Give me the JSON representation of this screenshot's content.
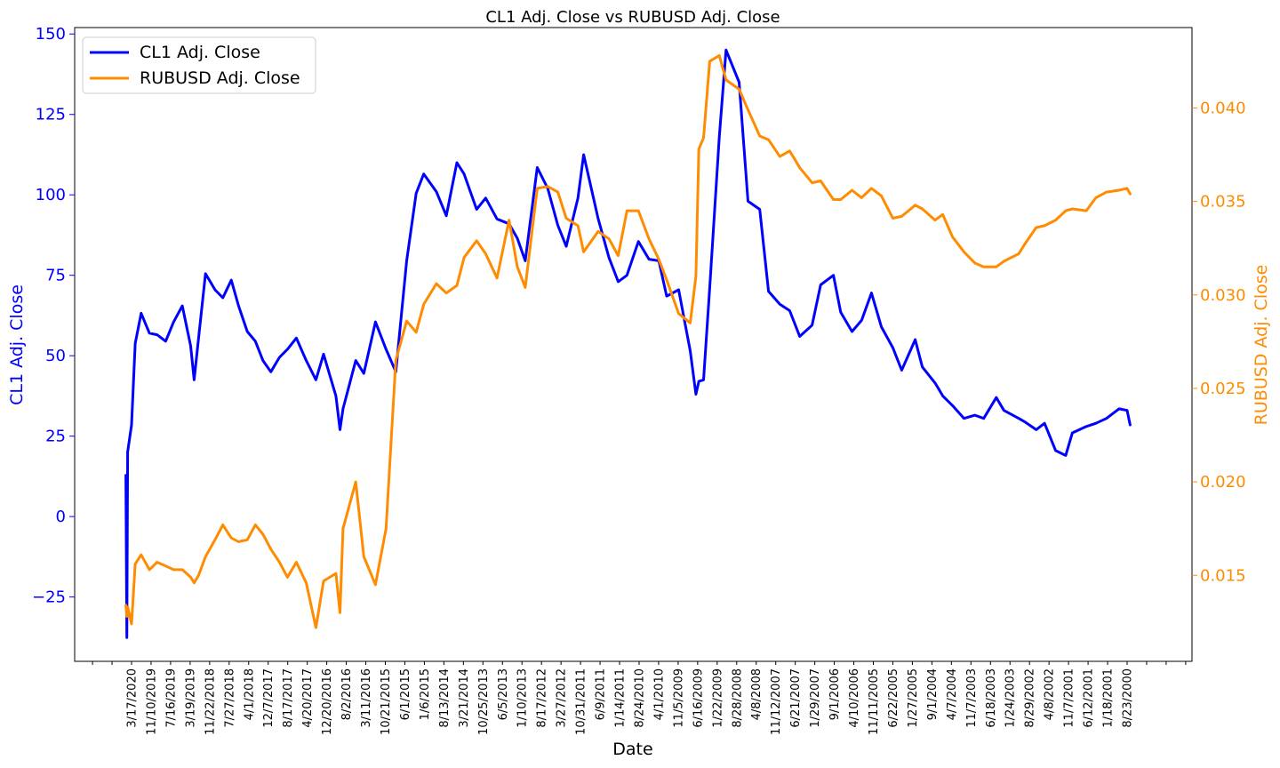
{
  "chart_data": {
    "type": "line",
    "title": "CL1 Adj. Close vs RUBUSD Adj. Close",
    "xlabel": "Date",
    "ylabel_left": "CL1 Adj. Close",
    "ylabel_right": "RUBUSD Adj. Close",
    "x_order": "reverse-chronological (newest on left)",
    "x_tick_labels": [
      "3/17/2020",
      "11/10/2019",
      "7/16/2019",
      "3/19/2019",
      "11/22/2018",
      "7/27/2018",
      "4/1/2018",
      "12/7/2017",
      "8/17/2017",
      "4/20/2017",
      "12/20/2016",
      "8/2/2016",
      "3/11/2016",
      "10/21/2015",
      "6/1/2015",
      "1/6/2015",
      "8/13/2014",
      "3/21/2014",
      "10/25/2013",
      "6/5/2013",
      "1/10/2013",
      "8/17/2012",
      "3/27/2012",
      "10/31/2011",
      "6/9/2011",
      "1/14/2011",
      "8/24/2010",
      "4/1/2010",
      "11/5/2009",
      "6/16/2009",
      "1/22/2009",
      "8/28/2008",
      "4/8/2008",
      "11/12/2007",
      "6/21/2007",
      "1/29/2007",
      "9/1/2006",
      "4/10/2006",
      "11/11/2005",
      "6/22/2005",
      "1/27/2005",
      "9/1/2004",
      "4/7/2004",
      "11/7/2003",
      "6/18/2003",
      "1/24/2003",
      "8/29/2002",
      "4/8/2002",
      "11/7/2001",
      "6/12/2001",
      "1/18/2001",
      "8/23/2000"
    ],
    "ylim_left": [
      -45,
      152
    ],
    "yticks_left": [
      "150",
      "125",
      "100",
      "75",
      "50",
      "25",
      "0",
      "−25"
    ],
    "ylim_right": [
      0.0104,
      0.0443
    ],
    "yticks_right": [
      "0.040",
      "0.035",
      "0.030",
      "0.025",
      "0.020",
      "0.015"
    ],
    "grid": false,
    "legend_position": "top-left",
    "series": [
      {
        "name": "CL1 Adj. Close",
        "axis": "left",
        "color": "#0000ff",
        "x": [
          "4/27/2020",
          "4/20/2020",
          "4/14/2020",
          "3/17/2020",
          "2/20/2020",
          "1/8/2020",
          "11/10/2019",
          "9/16/2019",
          "7/16/2019",
          "5/20/2019",
          "3/19/2019",
          "1/18/2019",
          "12/24/2018",
          "11/22/2018",
          "10/3/2018",
          "7/27/2018",
          "6/1/2018",
          "4/1/2018",
          "2/8/2018",
          "12/7/2017",
          "10/10/2017",
          "8/17/2017",
          "6/21/2017",
          "4/20/2017",
          "2/22/2017",
          "12/20/2016",
          "10/10/2016",
          "8/2/2016",
          "6/8/2016",
          "3/11/2016",
          "2/11/2016",
          "1/20/2016",
          "10/21/2015",
          "8/24/2015",
          "6/1/2015",
          "3/17/2015",
          "1/6/2015",
          "10/20/2014",
          "8/13/2014",
          "6/20/2014",
          "3/21/2014",
          "1/9/2014",
          "10/25/2013",
          "9/3/2013",
          "6/5/2013",
          "4/1/2013",
          "1/10/2013",
          "10/15/2012",
          "8/17/2012",
          "6/21/2012",
          "3/27/2012",
          "1/12/2012",
          "10/31/2011",
          "9/1/2011",
          "6/9/2011",
          "4/29/2011",
          "1/14/2011",
          "10/29/2010",
          "8/24/2010",
          "6/22/2010",
          "4/1/2010",
          "1/15/2010",
          "11/5/2009",
          "9/10/2009",
          "6/16/2009",
          "3/25/2009",
          "2/12/2009",
          "1/22/2009",
          "12/19/2008",
          "11/5/2008",
          "8/28/2008",
          "7/11/2008",
          "4/8/2008",
          "2/4/2008",
          "11/12/2007",
          "9/10/2007",
          "6/21/2007",
          "4/11/2007",
          "1/29/2007",
          "11/1/2006",
          "9/1/2006",
          "6/1/2006",
          "4/10/2006",
          "1/19/2006",
          "11/11/2005",
          "9/1/2005",
          "6/22/2005",
          "4/1/2005",
          "1/27/2005",
          "10/22/2004",
          "9/1/2004",
          "6/1/2004",
          "4/7/2004",
          "1/28/2004",
          "11/7/2003",
          "8/20/2003",
          "6/18/2003",
          "3/20/2003",
          "1/24/2003",
          "10/10/2002",
          "8/29/2002",
          "6/7/2002",
          "4/8/2002",
          "1/18/2002",
          "11/7/2001",
          "9/20/2001",
          "6/12/2001",
          "4/4/2001",
          "1/18/2001",
          "10/20/2000",
          "8/23/2000",
          "8/1/2000"
        ],
        "values": [
          12.8,
          -37.6,
          20.1,
          28.5,
          53.8,
          63.2,
          57.0,
          56.5,
          54.5,
          60.5,
          65.5,
          53.0,
          42.5,
          55.5,
          75.5,
          70.5,
          68.0,
          73.5,
          65.5,
          57.5,
          54.5,
          48.5,
          45.0,
          49.5,
          52.0,
          55.5,
          48.5,
          42.5,
          50.5,
          37.5,
          27.0,
          33.5,
          48.5,
          44.5,
          60.5,
          52.0,
          45.0,
          79.5,
          100.5,
          106.5,
          101.0,
          93.5,
          110.0,
          106.5,
          95.5,
          99.0,
          92.5,
          91.0,
          86.5,
          79.5,
          108.5,
          102.0,
          90.5,
          84.0,
          99.0,
          112.5,
          92.5,
          80.5,
          73.0,
          75.0,
          85.5,
          80.0,
          79.5,
          68.5,
          70.5,
          51.5,
          38.0,
          42.0,
          42.5,
          71.0,
          118.0,
          145.0,
          135.0,
          98.0,
          95.5,
          70.0,
          66.0,
          64.0,
          56.0,
          59.5,
          72.0,
          75.0,
          63.5,
          57.5,
          61.0,
          69.5,
          59.0,
          52.5,
          45.5,
          55.0,
          46.5,
          41.5,
          37.5,
          34.5,
          30.5,
          31.5,
          30.5,
          37.0,
          33.0,
          30.5,
          29.5,
          27.0,
          29.0,
          20.5,
          19.0,
          26.0,
          28.0,
          29.0,
          30.5,
          33.5,
          33.0,
          28.5
        ]
      },
      {
        "name": "RUBUSD Adj. Close",
        "axis": "right",
        "color": "#ff8c00",
        "x": [
          "4/27/2020",
          "4/20/2020",
          "4/14/2020",
          "3/17/2020",
          "2/20/2020",
          "1/8/2020",
          "11/10/2019",
          "9/16/2019",
          "7/16/2019",
          "5/20/2019",
          "3/19/2019",
          "1/18/2019",
          "12/24/2018",
          "11/22/2018",
          "10/3/2018",
          "7/27/2018",
          "6/1/2018",
          "4/1/2018",
          "2/8/2018",
          "12/7/2017",
          "10/10/2017",
          "8/17/2017",
          "6/21/2017",
          "4/20/2017",
          "2/22/2017",
          "12/20/2016",
          "10/10/2016",
          "8/2/2016",
          "6/8/2016",
          "3/11/2016",
          "2/11/2016",
          "1/20/2016",
          "10/21/2015",
          "8/24/2015",
          "6/1/2015",
          "3/17/2015",
          "1/6/2015",
          "10/20/2014",
          "8/13/2014",
          "6/20/2014",
          "3/21/2014",
          "1/9/2014",
          "10/25/2013",
          "9/3/2013",
          "6/5/2013",
          "4/1/2013",
          "1/10/2013",
          "10/15/2012",
          "8/17/2012",
          "6/21/2012",
          "3/27/2012",
          "1/12/2012",
          "10/31/2011",
          "9/1/2011",
          "6/9/2011",
          "4/29/2011",
          "1/14/2011",
          "10/29/2010",
          "8/24/2010",
          "6/22/2010",
          "4/1/2010",
          "1/15/2010",
          "11/5/2009",
          "9/10/2009",
          "6/16/2009",
          "3/25/2009",
          "2/12/2009",
          "1/22/2009",
          "12/19/2008",
          "11/5/2008",
          "8/28/2008",
          "7/11/2008",
          "4/8/2008",
          "2/4/2008",
          "11/12/2007",
          "9/10/2007",
          "6/21/2007",
          "4/11/2007",
          "1/29/2007",
          "11/1/2006",
          "9/1/2006",
          "6/1/2006",
          "4/10/2006",
          "1/19/2006",
          "11/11/2005",
          "9/1/2005",
          "6/22/2005",
          "4/1/2005",
          "1/27/2005",
          "10/22/2004",
          "9/1/2004",
          "6/1/2004",
          "4/7/2004",
          "1/28/2004",
          "11/7/2003",
          "8/20/2003",
          "6/18/2003",
          "3/20/2003",
          "1/24/2003",
          "10/10/2002",
          "8/29/2002",
          "6/7/2002",
          "4/8/2002",
          "1/18/2002",
          "11/7/2001",
          "9/20/2001",
          "6/12/2001",
          "4/4/2001",
          "1/18/2001",
          "10/20/2000",
          "8/23/2000",
          "8/1/2000"
        ],
        "values": [
          0.0134,
          0.0128,
          0.0133,
          0.0124,
          0.0156,
          0.0161,
          0.0153,
          0.0157,
          0.0155,
          0.0153,
          0.0153,
          0.0149,
          0.0146,
          0.015,
          0.016,
          0.0169,
          0.0177,
          0.017,
          0.0168,
          0.0169,
          0.0177,
          0.0172,
          0.0164,
          0.0157,
          0.0149,
          0.0157,
          0.0146,
          0.0122,
          0.0147,
          0.0151,
          0.013,
          0.0175,
          0.02,
          0.016,
          0.0145,
          0.0175,
          0.0265,
          0.0286,
          0.028,
          0.0295,
          0.0306,
          0.0301,
          0.0305,
          0.032,
          0.0329,
          0.0322,
          0.0309,
          0.034,
          0.0315,
          0.0304,
          0.0357,
          0.0358,
          0.0355,
          0.0341,
          0.0337,
          0.0323,
          0.0334,
          0.033,
          0.0321,
          0.0345,
          0.0345,
          0.033,
          0.0319,
          0.0308,
          0.029,
          0.0285,
          0.031,
          0.0378,
          0.0384,
          0.0425,
          0.0428,
          0.0415,
          0.041,
          0.0399,
          0.0385,
          0.0383,
          0.0374,
          0.0377,
          0.0368,
          0.036,
          0.0361,
          0.0351,
          0.0351,
          0.0356,
          0.0352,
          0.0357,
          0.0353,
          0.0341,
          0.0342,
          0.0348,
          0.0346,
          0.034,
          0.0343,
          0.0331,
          0.0323,
          0.0317,
          0.0315,
          0.0315,
          0.0318,
          0.0322,
          0.0327,
          0.0336,
          0.0337,
          0.034,
          0.0345,
          0.0346,
          0.0345,
          0.0352,
          0.0355,
          0.0356,
          0.0357,
          0.0354
        ]
      }
    ]
  }
}
